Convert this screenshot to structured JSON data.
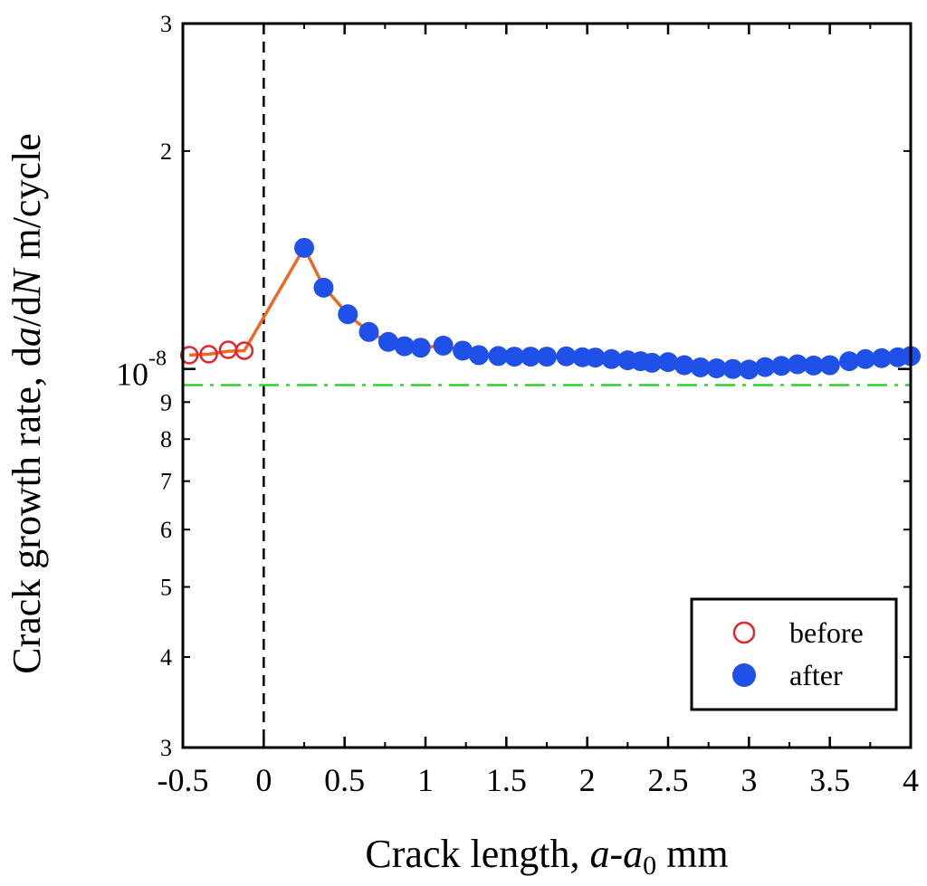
{
  "chart_data": {
    "type": "scatter",
    "title": "",
    "xlabel": {
      "prefix": "Crack length, ",
      "var1": "a",
      "dash": "-",
      "var2": "a",
      "sub": "0",
      "suffix": " mm"
    },
    "ylabel": {
      "p1": "Crack growth rate, d",
      "v1": "a",
      "p2": "/d",
      "v2": "N",
      "p3": " m/cycle"
    },
    "xlim": [
      -0.5,
      4
    ],
    "ylim": [
      3e-09,
      3e-08
    ],
    "yscale": "log",
    "x_ticks": [
      {
        "value": -0.5,
        "label": "-0.5"
      },
      {
        "value": 0,
        "label": "0"
      },
      {
        "value": 0.5,
        "label": "0.5"
      },
      {
        "value": 1,
        "label": "1"
      },
      {
        "value": 1.5,
        "label": "1.5"
      },
      {
        "value": 2,
        "label": "2"
      },
      {
        "value": 2.5,
        "label": "2.5"
      },
      {
        "value": 3,
        "label": "3"
      },
      {
        "value": 3.5,
        "label": "3.5"
      },
      {
        "value": 4,
        "label": "4"
      }
    ],
    "y_minor_labels": [
      {
        "value": 3e-09,
        "label": "3"
      },
      {
        "value": 4e-09,
        "label": "4"
      },
      {
        "value": 5e-09,
        "label": "5"
      },
      {
        "value": 6e-09,
        "label": "6"
      },
      {
        "value": 7e-09,
        "label": "7"
      },
      {
        "value": 8e-09,
        "label": "8"
      },
      {
        "value": 9e-09,
        "label": "9"
      },
      {
        "value": 2e-08,
        "label": "2"
      },
      {
        "value": 3e-08,
        "label": "3"
      }
    ],
    "y_major_label": {
      "value": 1e-08,
      "base": "10",
      "exponent": "-8"
    },
    "vertical_reference_x": 0,
    "horizontal_reference_y": 9.5e-09,
    "series": [
      {
        "name": "before",
        "marker": "open-circle",
        "color": "#e0262b",
        "x": [
          -0.46,
          -0.34,
          -0.22,
          -0.12
        ],
        "y": [
          1.045e-08,
          1.048e-08,
          1.063e-08,
          1.06e-08
        ]
      },
      {
        "name": "after",
        "marker": "filled-circle",
        "color": "#1f50e8",
        "x": [
          0.25,
          0.37,
          0.52,
          0.65,
          0.77,
          0.87,
          0.97,
          1.11,
          1.23,
          1.33,
          1.45,
          1.55,
          1.65,
          1.75,
          1.87,
          1.97,
          2.05,
          2.15,
          2.25,
          2.33,
          2.4,
          2.5,
          2.6,
          2.7,
          2.8,
          2.9,
          3.0,
          3.1,
          3.2,
          3.3,
          3.4,
          3.5,
          3.62,
          3.72,
          3.82,
          3.92,
          4.0
        ],
        "y": [
          1.47e-08,
          1.295e-08,
          1.19e-08,
          1.125e-08,
          1.09e-08,
          1.075e-08,
          1.07e-08,
          1.077e-08,
          1.06e-08,
          1.045e-08,
          1.042e-08,
          1.04e-08,
          1.04e-08,
          1.04e-08,
          1.041e-08,
          1.038e-08,
          1.037e-08,
          1.032e-08,
          1.028e-08,
          1.025e-08,
          1.02e-08,
          1.022e-08,
          1.012e-08,
          1.005e-08,
          1.002e-08,
          1e-08,
          9.98e-09,
          1.006e-08,
          1.01e-08,
          1.015e-08,
          1.011e-08,
          1.012e-08,
          1.025e-08,
          1.032e-08,
          1.035e-08,
          1.038e-08,
          1.042e-08
        ]
      }
    ],
    "fit_line": {
      "color": "#ee6a24",
      "x": [
        -0.46,
        -0.34,
        -0.22,
        -0.12,
        0.25,
        0.37,
        0.52,
        0.65,
        0.77,
        0.87,
        0.97,
        1.11,
        1.23,
        1.33,
        1.45,
        1.55,
        1.65,
        1.75,
        1.87,
        1.97,
        2.05,
        2.15,
        2.25,
        2.33,
        2.4,
        2.5,
        2.6,
        2.7,
        2.8,
        2.9,
        3.0,
        3.1,
        3.2,
        3.3,
        3.4,
        3.5,
        3.62,
        3.72,
        3.82,
        3.92,
        4.0
      ],
      "y": [
        1.045e-08,
        1.048e-08,
        1.058e-08,
        1.06e-08,
        1.47e-08,
        1.3e-08,
        1.19e-08,
        1.125e-08,
        1.09e-08,
        1.075e-08,
        1.07e-08,
        1.077e-08,
        1.06e-08,
        1.045e-08,
        1.042e-08,
        1.04e-08,
        1.04e-08,
        1.04e-08,
        1.041e-08,
        1.038e-08,
        1.037e-08,
        1.032e-08,
        1.028e-08,
        1.025e-08,
        1.02e-08,
        1.022e-08,
        1.012e-08,
        1.005e-08,
        1.002e-08,
        1e-08,
        9.98e-09,
        1.006e-08,
        1.01e-08,
        1.015e-08,
        1.011e-08,
        1.012e-08,
        1.025e-08,
        1.032e-08,
        1.035e-08,
        1.038e-08,
        1.042e-08
      ]
    },
    "legend": {
      "placement": "bottom-right",
      "entries": [
        "before",
        "after"
      ]
    }
  }
}
